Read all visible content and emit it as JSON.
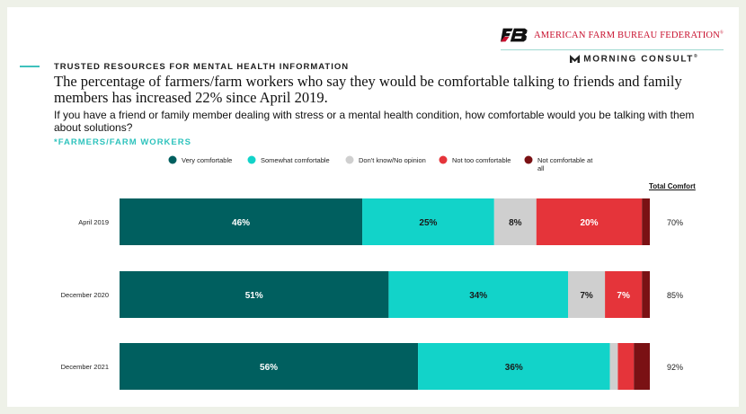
{
  "header": {
    "org_name": "AMERICAN FARM BUREAU FEDERATION",
    "org_mark": "®",
    "partner_name": "MORNING CONSULT",
    "partner_mark": "®"
  },
  "kicker": "TRUSTED RESOURCES FOR MENTAL HEALTH INFORMATION",
  "headline": "The percentage of farmers/farm workers who say they would be comfortable talking to friends and family members has increased 22% since April 2019.",
  "question": "If you have a friend or family member dealing with stress or a mental health condition, how comfortable would you be talking with them about solutions?",
  "base_label": "*FARMERS/FARM WORKERS",
  "total_header": "Total Comfort",
  "chart_data": {
    "type": "bar",
    "orientation": "horizontal",
    "stacked": true,
    "categories": [
      "April 2019",
      "December 2020",
      "December 2021"
    ],
    "series": [
      {
        "name": "Very comfortable",
        "color": "#005f5f",
        "values": [
          46,
          51,
          56
        ],
        "labels": [
          "46%",
          "51%",
          "56%"
        ]
      },
      {
        "name": "Somewhat comfortable",
        "color": "#12d3c9",
        "values": [
          25,
          34,
          36
        ],
        "labels": [
          "25%",
          "34%",
          "36%"
        ]
      },
      {
        "name": "Don't know/No opinion",
        "color": "#cfcfcf",
        "values": [
          8,
          7,
          1.5
        ],
        "labels": [
          "8%",
          "7%",
          ""
        ]
      },
      {
        "name": "Not too comfortable",
        "color": "#e5343a",
        "values": [
          20,
          7,
          3
        ],
        "labels": [
          "20%",
          "7%",
          ""
        ]
      },
      {
        "name": "Not comfortable at all",
        "color": "#7a1114",
        "values": [
          1.5,
          1.5,
          3
        ],
        "labels": [
          "",
          "",
          ""
        ]
      }
    ],
    "total_comfort": [
      "70%",
      "85%",
      "92%"
    ],
    "legend_position": "top",
    "grid": false
  }
}
